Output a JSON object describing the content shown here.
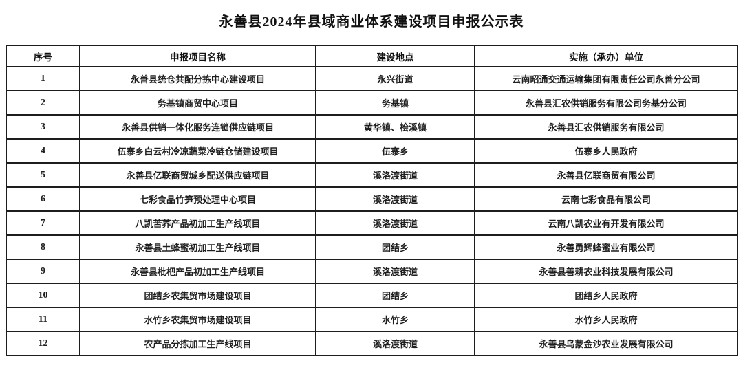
{
  "page": {
    "title": "永善县2024年县域商业体系建设项目申报公示表"
  },
  "table": {
    "headers": [
      "序号",
      "申报项目名称",
      "建设地点",
      "实施（承办）单位"
    ],
    "rows": [
      {
        "no": "1",
        "project": "永善县统仓共配分拣中心建设项目",
        "location": "永兴街道",
        "unit": "云南昭通交通运输集团有限责任公司永善分公司"
      },
      {
        "no": "2",
        "project": "务基镇商贸中心项目",
        "location": "务基镇",
        "unit": "永善县汇农供销服务有限公司务基分公司"
      },
      {
        "no": "3",
        "project": "永善县供销一体化服务连锁供应链项目",
        "location": "黄华镇、桧溪镇",
        "unit": "永善县汇农供销服务有限公司"
      },
      {
        "no": "4",
        "project": "伍寨乡白云村冷凉蔬菜冷链仓储建设项目",
        "location": "伍寨乡",
        "unit": "伍寨乡人民政府"
      },
      {
        "no": "5",
        "project": "永善县亿联商贸城乡配送供应链项目",
        "location": "溪洛渡街道",
        "unit": "永善县亿联商贸有限公司"
      },
      {
        "no": "6",
        "project": "七彩食品竹笋预处理中心项目",
        "location": "溪洛渡街道",
        "unit": "云南七彩食品有限公司"
      },
      {
        "no": "7",
        "project": "八凯苦荞产品初加工生产线项目",
        "location": "溪洛渡街道",
        "unit": "云南八凯农业有开发有限公司"
      },
      {
        "no": "8",
        "project": "永善县土蜂蜜初加工生产线项目",
        "location": "团结乡",
        "unit": "永善勇辉蜂蜜业有限公司"
      },
      {
        "no": "9",
        "project": "永善县枇杷产品初加工生产线项目",
        "location": "溪洛渡街道",
        "unit": "永善县善耕农业科技发展有限公司"
      },
      {
        "no": "10",
        "project": "团结乡农集贸市场建设项目",
        "location": "团结乡",
        "unit": "团结乡人民政府"
      },
      {
        "no": "11",
        "project": "水竹乡农集贸市场建设项目",
        "location": "水竹乡",
        "unit": "水竹乡人民政府"
      },
      {
        "no": "12",
        "project": "农产品分拣加工生产线项目",
        "location": "溪洛渡街道",
        "unit": "永善县乌蒙金沙农业发展有限公司"
      }
    ]
  },
  "colors": {
    "text": "#1a1a1a",
    "border": "#1d1d1d",
    "background": "#ffffff"
  }
}
